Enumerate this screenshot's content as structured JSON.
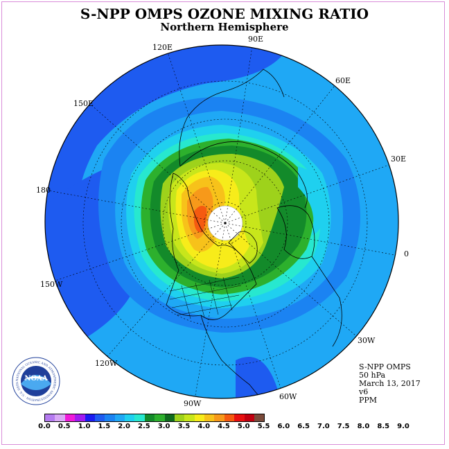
{
  "header": {
    "title": "S-NPP OMPS OZONE MIXING RATIO",
    "subtitle": "Northern Hemisphere"
  },
  "map": {
    "projection": "north polar stereographic",
    "longitude_labels": [
      "90E",
      "60E",
      "30E",
      "0",
      "30W",
      "60W",
      "90W",
      "120W",
      "150W",
      "180",
      "150E",
      "120E"
    ],
    "colors": {
      "ocean_outer": "#1e5bf0",
      "ring_2_5": "#1b83f2",
      "ring_3_0": "#1fa8f5",
      "ring_3_5": "#1fd0ef",
      "ring_4_0": "#27e8cf",
      "ring_4_5": "#2db02d",
      "ring_5_0": "#138a2a",
      "ring_5_5": "#9ed21b",
      "ring_6_0": "#d9f01b",
      "ring_6_5": "#f7ec1a",
      "ring_7_0": "#f7c21a",
      "ring_7_5": "#f7991a",
      "ring_8_0": "#f55a10",
      "pole_missing": "#ffffff"
    }
  },
  "logo": {
    "name": "NOAA",
    "ring_text": "NATIONAL OCEANIC AND ATMOSPHERIC ADMINISTRATION · U.S. DEPARTMENT OF COMMERCE"
  },
  "info": {
    "satellite": "S-NPP OMPS",
    "level": "50 hPa",
    "date": "March 13, 2017",
    "version": "v6",
    "units": "PPM"
  },
  "colorbar": {
    "colors": [
      "#b57bf0",
      "#d9a8f5",
      "#f01bd9",
      "#a01bf0",
      "#1b1bf0",
      "#1e5bf0",
      "#1b83f2",
      "#1fa8f5",
      "#1fd0ef",
      "#27e8cf",
      "#138a2a",
      "#2db02d",
      "#0f6a1e",
      "#9ed21b",
      "#c8e61b",
      "#f7ec1a",
      "#f7c21a",
      "#f7991a",
      "#f55a10",
      "#e81010",
      "#c00010",
      "#7a4a3a"
    ],
    "tick_labels": [
      "0.0",
      "0.5",
      "1.0",
      "1.5",
      "2.0",
      "2.5",
      "3.0",
      "3.5",
      "4.0",
      "4.5",
      "5.0",
      "5.5",
      "6.0",
      "6.5",
      "7.0",
      "7.5",
      "8.0",
      "8.5",
      "9.0"
    ]
  }
}
